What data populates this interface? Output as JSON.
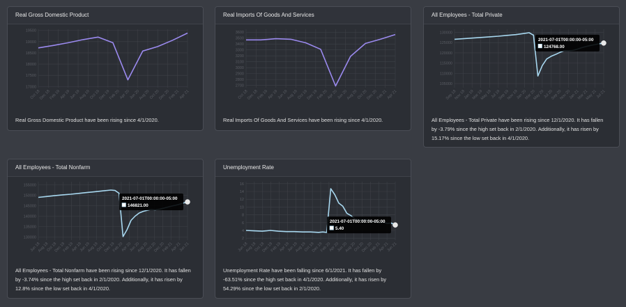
{
  "colors": {
    "purple": "#9b8aef",
    "blue": "#a8d8f0",
    "grid": "#3e4147",
    "tooltip_bg": "#000000"
  },
  "charts": [
    {
      "title": "Real Gross Domestic Product",
      "description": "Real Gross Domestic Product have been rising since 4/1/2020.",
      "chart_data": {
        "type": "line",
        "categories": [
          "Oct 18",
          "Dec 18",
          "Feb 19",
          "Apr 19",
          "Jun 19",
          "Aug 19",
          "Oct 19",
          "Dec 19",
          "Feb 20",
          "Apr 20",
          "Jun 20",
          "Aug 20",
          "Oct 20",
          "Dec 20",
          "Feb 21",
          "Apr 21"
        ],
        "tick_labels": [
          "Oct 18",
          "Dec 18",
          "Feb 19",
          "Apr 19",
          "Jun 19",
          "Aug 19",
          "Oct 19",
          "Dec 19",
          "Feb 20",
          "Apr 20",
          "Jun 20",
          "Aug 20",
          "Oct 20",
          "Dec 20",
          "Feb 21",
          "Apr 21"
        ],
        "y_ticks": [
          "19500",
          "19000",
          "18500",
          "18000",
          "17500",
          "17000"
        ],
        "ylim": [
          16950,
          19550
        ],
        "x": [
          0,
          3,
          6,
          9,
          12,
          15,
          18,
          21,
          24,
          27,
          30
        ],
        "values": [
          18720,
          18830,
          18950,
          19090,
          19200,
          18950,
          17300,
          18580,
          18780,
          19060,
          19380
        ],
        "color": "purple"
      }
    },
    {
      "title": "Real Imports Of Goods And Services",
      "description": "Real Imports Of Goods And Services have been rising since 4/1/2020.",
      "chart_data": {
        "type": "line",
        "categories": [
          "Oct 18",
          "Dec 18",
          "Feb 19",
          "Apr 19",
          "Jun 19",
          "Aug 19",
          "Oct 19",
          "Dec 19",
          "Feb 20",
          "Apr 20",
          "Jun 20",
          "Aug 20",
          "Oct 20",
          "Dec 20",
          "Feb 21",
          "Apr 21"
        ],
        "tick_labels": [
          "Oct 18",
          "Dec 18",
          "Feb 19",
          "Apr 19",
          "Jun 19",
          "Aug 19",
          "Oct 19",
          "Dec 19",
          "Feb 20",
          "Apr 20",
          "Jun 20",
          "Aug 20",
          "Oct 20",
          "Dec 20",
          "Feb 21",
          "Apr 21"
        ],
        "y_ticks": [
          "3600",
          "3500",
          "3400",
          "3300",
          "3200",
          "3100",
          "3000",
          "2900",
          "2800",
          "2700"
        ],
        "ylim": [
          2660,
          3650
        ],
        "x": [
          0,
          3,
          6,
          9,
          12,
          15,
          18,
          21,
          24,
          27,
          30
        ],
        "values": [
          3470,
          3470,
          3490,
          3480,
          3420,
          3310,
          2690,
          3190,
          3410,
          3480,
          3560
        ],
        "color": "purple"
      }
    },
    {
      "title": "All Employees - Total Private",
      "description": "All Employees - Total Private have been rising since 12/1/2020. It has fallen by -3.79% since the high set back in 2/1/2020. Additionally, it has risen by 15.17% since the low set back in 4/1/2020.",
      "tooltip": {
        "date": "2021-07-01T00:00:00-05:00",
        "value": "124768.00"
      },
      "chart_data": {
        "type": "line",
        "categories": [
          "Sep 18",
          "Nov 18",
          "Jan 19",
          "Mar 19",
          "May 19",
          "Jul 19",
          "Sep 19",
          "Nov 19",
          "Jan 20",
          "Mar 20",
          "May 20",
          "Jul 20",
          "Sep 20",
          "Nov 20",
          "Jan 21",
          "Mar 21",
          "May 21",
          "Jul 21"
        ],
        "tick_labels": [
          "Sep 18",
          "Nov 18",
          "Jan 19",
          "Mar 19",
          "May 19",
          "Jul 19",
          "Sep 19",
          "Nov 19",
          "Jan 20",
          "Mar 20",
          "May 20",
          "Jul 20",
          "Sep 20",
          "Nov 20",
          "Jan 21",
          "Mar 21",
          "May 21",
          "Jul 21"
        ],
        "y_ticks": [
          "130000",
          "125000",
          "120000",
          "115000",
          "110000",
          "105000"
        ],
        "ylim": [
          103000,
          131500
        ],
        "x": [
          0,
          2,
          4,
          6,
          8,
          10,
          12,
          14,
          16,
          17,
          18,
          19,
          20,
          21,
          22,
          23,
          24,
          25,
          26,
          27,
          28,
          29,
          30,
          31,
          32,
          33,
          34
        ],
        "values": [
          126600,
          126900,
          127200,
          127500,
          127800,
          128100,
          128500,
          128900,
          129500,
          129800,
          128600,
          108700,
          113800,
          117000,
          118300,
          119200,
          120200,
          121000,
          121000,
          121200,
          121800,
          122500,
          123100,
          123600,
          124000,
          124400,
          124768
        ],
        "color": "blue"
      }
    },
    {
      "title": "All Employees - Total Nonfarm",
      "description": "All Employees - Total Nonfarm have been rising since 12/1/2020. It has fallen by -3.74% since the high set back in 2/1/2020. Additionally, it has risen by 12.8% since the low set back in 4/1/2020.",
      "tooltip": {
        "date": "2021-07-01T00:00:00-05:00",
        "value": "146821.00"
      },
      "chart_data": {
        "type": "line",
        "categories": [
          "Jun 18",
          "Aug 18",
          "Oct 18",
          "Dec 18",
          "Feb 19",
          "Apr 19",
          "Jun 19",
          "Aug 19",
          "Oct 19",
          "Dec 19",
          "Feb 20",
          "Apr 20",
          "Jun 20",
          "Aug 20",
          "Oct 20",
          "Dec 20",
          "Feb 21",
          "Apr 21",
          "Jun 21"
        ],
        "tick_labels": [
          "Jun 18",
          "Aug 18",
          "Oct 18",
          "Dec 18",
          "Feb 19",
          "Apr 19",
          "Jun 19",
          "Aug 19",
          "Oct 19",
          "Dec 19",
          "Feb 20",
          "Apr 20",
          "Jun 20",
          "Aug 20",
          "Oct 20",
          "Dec 20",
          "Feb 21",
          "Apr 21",
          "Jun 21"
        ],
        "y_ticks": [
          "155000",
          "150000",
          "145000",
          "140000",
          "135000",
          "130000"
        ],
        "ylim": [
          128500,
          156500
        ],
        "x": [
          0,
          2,
          4,
          6,
          8,
          10,
          12,
          14,
          16,
          18,
          19,
          20,
          21,
          22,
          23,
          24,
          25,
          26,
          27,
          28,
          29,
          30,
          31,
          32,
          33,
          34,
          35,
          36,
          37
        ],
        "values": [
          149000,
          149400,
          149800,
          150200,
          150500,
          150900,
          151300,
          151700,
          152100,
          152500,
          152300,
          151000,
          130200,
          133500,
          138000,
          140000,
          141500,
          142300,
          142800,
          143200,
          143000,
          143300,
          143800,
          144300,
          144800,
          145200,
          145700,
          146300,
          146821
        ],
        "color": "blue"
      }
    },
    {
      "title": "Unemployment Rate",
      "description": "Unemployment Rate have been falling since 6/1/2021. It has fallen by -63.51% since the high set back in 4/1/2020. Additionally, it has risen by 54.29% since the low set back in 2/1/2020.",
      "tooltip": {
        "date": "2021-07-01T00:00:00-05:00",
        "value": "5.40"
      },
      "chart_data": {
        "type": "line",
        "categories": [
          "Jun 18",
          "Aug 18",
          "Oct 18",
          "Dec 18",
          "Feb 19",
          "Apr 19",
          "Jun 19",
          "Aug 19",
          "Oct 19",
          "Dec 19",
          "Feb 20",
          "Apr 20",
          "Jun 20",
          "Aug 20",
          "Oct 20",
          "Dec 20",
          "Feb 21",
          "Apr 21",
          "Jun 21"
        ],
        "tick_labels": [
          "Jun 18",
          "Aug 18",
          "Oct 18",
          "Dec 18",
          "Feb 19",
          "Apr 19",
          "Jun 19",
          "Aug 19",
          "Oct 19",
          "Dec 19",
          "Feb 20",
          "Apr 20",
          "Jun 20",
          "Aug 20",
          "Oct 20",
          "Dec 20",
          "Feb 21",
          "Apr 21",
          "Jun 21"
        ],
        "y_ticks": [
          "16",
          "14",
          "12",
          "10",
          "8",
          "6",
          "4",
          "2"
        ],
        "ylim": [
          1.5,
          16.5
        ],
        "x": [
          0,
          2,
          4,
          6,
          8,
          10,
          12,
          14,
          16,
          18,
          19,
          20,
          21,
          22,
          23,
          24,
          25,
          26,
          27,
          28,
          29,
          30,
          31,
          32,
          33,
          34,
          35,
          36,
          37
        ],
        "values": [
          4.0,
          3.9,
          3.8,
          4.0,
          3.8,
          3.7,
          3.7,
          3.6,
          3.6,
          3.5,
          3.6,
          3.5,
          14.7,
          13.2,
          11.0,
          10.2,
          8.4,
          7.8,
          6.9,
          6.7,
          6.7,
          6.7,
          6.3,
          6.2,
          6.0,
          6.1,
          5.8,
          5.9,
          5.4
        ],
        "color": "blue"
      }
    }
  ]
}
